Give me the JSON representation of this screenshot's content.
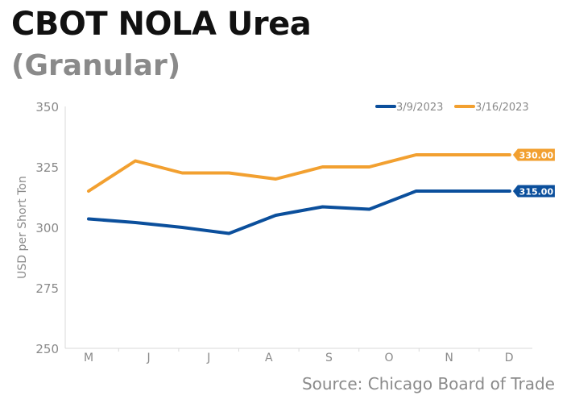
{
  "title": "CBOT NOLA Urea",
  "subtitle": "(Granular)",
  "source": "Source: Chicago Board of Trade",
  "chart_data": {
    "type": "line",
    "title": "CBOT NOLA Urea",
    "subtitle": "(Granular)",
    "xlabel": "",
    "ylabel": "USD per Short Ton",
    "categories": [
      "M",
      "J",
      "J",
      "A",
      "S",
      "O",
      "N",
      "D"
    ],
    "ylim": [
      250,
      350
    ],
    "yticks": [
      250,
      275,
      300,
      325,
      350
    ],
    "legend_position": "top-right",
    "grid": false,
    "series": [
      {
        "name": "3/9/2023",
        "color": "#0b4f9c",
        "x": [
          0,
          1,
          2,
          3,
          4,
          5,
          6,
          7,
          8,
          9
        ],
        "values": [
          303.5,
          302,
          300,
          297.5,
          305,
          308.5,
          307.5,
          315,
          315,
          315
        ],
        "end_label": "315.00"
      },
      {
        "name": "3/16/2023",
        "color": "#f2a030",
        "x": [
          0,
          1,
          2,
          3,
          4,
          5,
          6,
          7,
          8,
          9
        ],
        "values": [
          315,
          327.5,
          322.5,
          322.5,
          320,
          325,
          325,
          330,
          330,
          330
        ],
        "end_label": "330.00"
      }
    ]
  }
}
